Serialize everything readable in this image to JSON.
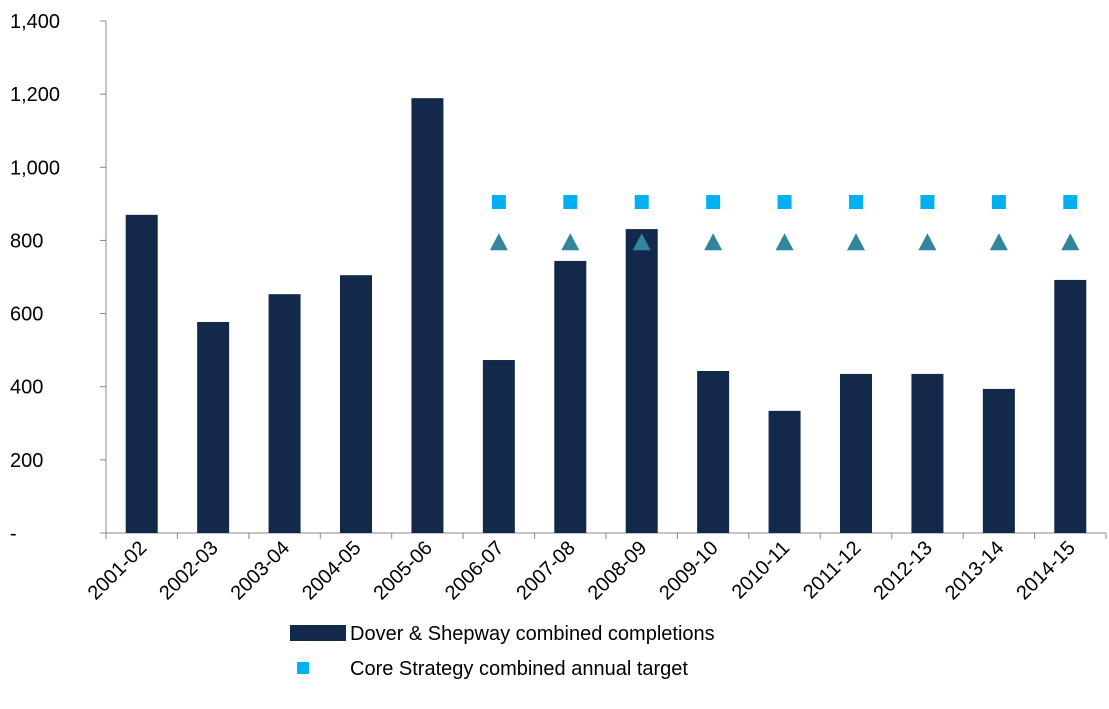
{
  "chart_data": {
    "type": "bar",
    "categories": [
      "2001-02",
      "2002-03",
      "2003-04",
      "2004-05",
      "2005-06",
      "2006-07",
      "2007-08",
      "2008-09",
      "2009-10",
      "2010-11",
      "2011-12",
      "2012-13",
      "2013-14",
      "2014-15"
    ],
    "series": [
      {
        "name": "Dover & Shepway combined completions",
        "type": "bar",
        "color": "#13294b",
        "values": [
          870,
          577,
          653,
          705,
          1189,
          473,
          744,
          831,
          443,
          334,
          435,
          435,
          394,
          692
        ]
      },
      {
        "name": "Core Strategy combined annual target",
        "type": "square",
        "color": "#00b0f0",
        "values": [
          null,
          null,
          null,
          null,
          null,
          905,
          905,
          905,
          905,
          905,
          905,
          905,
          905,
          905
        ]
      },
      {
        "type": "triangle",
        "color": "#31859c",
        "values": [
          null,
          null,
          null,
          null,
          null,
          795,
          795,
          795,
          795,
          795,
          795,
          795,
          795,
          795
        ]
      }
    ],
    "ylim": [
      0,
      1400
    ],
    "yticks": [
      {
        "value": 0,
        "label": "-"
      },
      200,
      400,
      600,
      800,
      {
        "value": 1000,
        "label": "1,000"
      },
      {
        "value": 1200,
        "label": "1,200"
      },
      {
        "value": 1400,
        "label": "1,400"
      }
    ]
  }
}
